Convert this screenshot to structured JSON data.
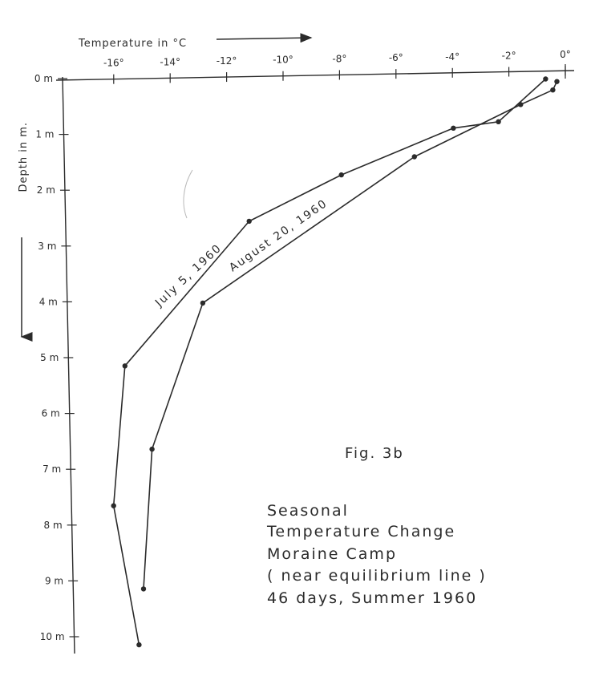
{
  "chart_data": {
    "type": "line",
    "x_axis_title": "Temperature in °C",
    "y_axis_title": "Depth in m.",
    "x_ticks": [
      {
        "value": -16,
        "label": "-16°"
      },
      {
        "value": -14,
        "label": "-14°"
      },
      {
        "value": -12,
        "label": "-12°"
      },
      {
        "value": -10,
        "label": "-10°"
      },
      {
        "value": -8,
        "label": "-8°"
      },
      {
        "value": -6,
        "label": "-6°"
      },
      {
        "value": -4,
        "label": "-4°"
      },
      {
        "value": -2,
        "label": "-2°"
      },
      {
        "value": 0,
        "label": "0°"
      }
    ],
    "y_ticks": [
      {
        "value": 0,
        "label": "0 m"
      },
      {
        "value": 1,
        "label": "1 m"
      },
      {
        "value": 2,
        "label": "2 m"
      },
      {
        "value": 3,
        "label": "3 m"
      },
      {
        "value": 4,
        "label": "4 m"
      },
      {
        "value": 5,
        "label": "5 m"
      },
      {
        "value": 6,
        "label": "6 m"
      },
      {
        "value": 7,
        "label": "7 m"
      },
      {
        "value": 8,
        "label": "8 m"
      },
      {
        "value": 9,
        "label": "9 m"
      },
      {
        "value": 10,
        "label": "10 m"
      }
    ],
    "xlim": [
      -17.8,
      0
    ],
    "ylim": [
      0,
      10
    ],
    "series": [
      {
        "name": "July 5, 1960",
        "points": [
          {
            "x": -0.7,
            "depth": 0.0
          },
          {
            "x": -2.4,
            "depth": 0.75
          },
          {
            "x": -4.0,
            "depth": 0.85
          },
          {
            "x": -8.0,
            "depth": 1.65
          },
          {
            "x": -11.3,
            "depth": 2.45
          },
          {
            "x": -15.8,
            "depth": 5.0
          },
          {
            "x": -16.3,
            "depth": 7.5
          },
          {
            "x": -15.5,
            "depth": 10.0
          }
        ]
      },
      {
        "name": "August 20, 1960",
        "points": [
          {
            "x": -0.3,
            "depth": 0.05
          },
          {
            "x": -0.45,
            "depth": 0.2
          },
          {
            "x": -1.6,
            "depth": 0.45
          },
          {
            "x": -5.4,
            "depth": 1.35
          },
          {
            "x": -13.0,
            "depth": 3.9
          },
          {
            "x": -14.9,
            "depth": 6.5
          },
          {
            "x": -15.3,
            "depth": 9.0
          }
        ]
      }
    ],
    "grid": false,
    "legend": "none"
  },
  "figure_label": "Fig. 3b",
  "caption_lines": [
    "Seasonal",
    "Temperature Change",
    "Moraine Camp",
    "( near equilibrium line )",
    "46 days, Summer 1960"
  ],
  "ink_color": "#2b2b2b"
}
